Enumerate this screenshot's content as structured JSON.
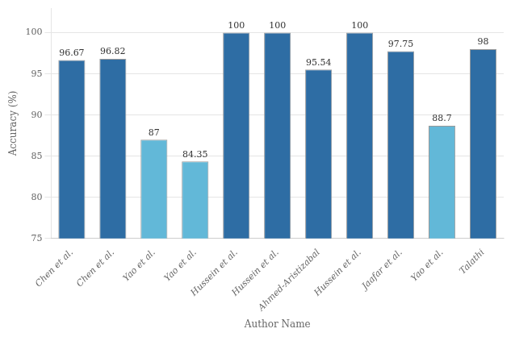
{
  "chart_data": {
    "type": "bar",
    "categories": [
      "Chen et al.",
      "Chen et al.",
      "Yao et al.",
      "Yao et al.",
      "Hussein et al.",
      "Hussein et al.",
      "Ahmed-Aristizabal",
      "Hussein et al.",
      "Jaafar et al.",
      "Yao et al.",
      "Talathi"
    ],
    "values": [
      96.67,
      96.82,
      87,
      84.35,
      100,
      100,
      95.54,
      100,
      97.75,
      88.7,
      98
    ],
    "colors": [
      "#2e6da4",
      "#2e6da4",
      "#62b8d8",
      "#62b8d8",
      "#2e6da4",
      "#2e6da4",
      "#2e6da4",
      "#2e6da4",
      "#2e6da4",
      "#62b8d8",
      "#2e6da4"
    ],
    "xlabel": "Author Name",
    "ylabel": "Accuracy (%)",
    "ylim": [
      75,
      103
    ],
    "yticks": [
      75,
      80,
      85,
      90,
      95,
      100
    ],
    "grid": true,
    "data_labels": true
  }
}
